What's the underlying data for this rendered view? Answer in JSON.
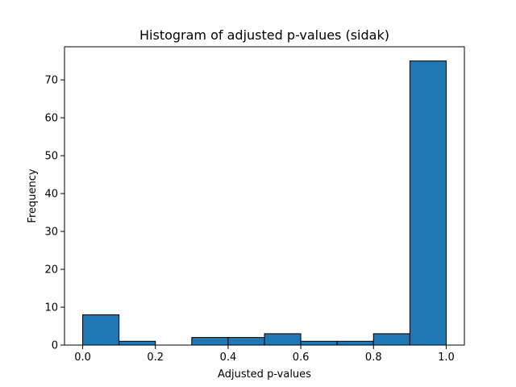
{
  "chart_data": {
    "type": "bar",
    "title": "Histogram of adjusted p-values (sidak)",
    "xlabel": "Adjusted p-values",
    "ylabel": "Frequency",
    "bin_edges": [
      0.0,
      0.1,
      0.2,
      0.3,
      0.4,
      0.5,
      0.6,
      0.7,
      0.8,
      0.9,
      1.0
    ],
    "values": [
      8,
      1,
      0,
      2,
      2,
      3,
      1,
      1,
      3,
      75
    ],
    "xlim": [
      -0.05,
      1.05
    ],
    "ylim": [
      0,
      78.75
    ],
    "xticks": [
      0.0,
      0.2,
      0.4,
      0.6,
      0.8,
      1.0
    ],
    "xtick_labels": [
      "0.0",
      "0.2",
      "0.4",
      "0.6",
      "0.8",
      "1.0"
    ],
    "yticks": [
      0,
      10,
      20,
      30,
      40,
      50,
      60,
      70
    ],
    "ytick_labels": [
      "0",
      "10",
      "20",
      "30",
      "40",
      "50",
      "60",
      "70"
    ],
    "bar_color": "#1f77b4",
    "edge_color": "#000000",
    "grid": false,
    "legend": false
  }
}
